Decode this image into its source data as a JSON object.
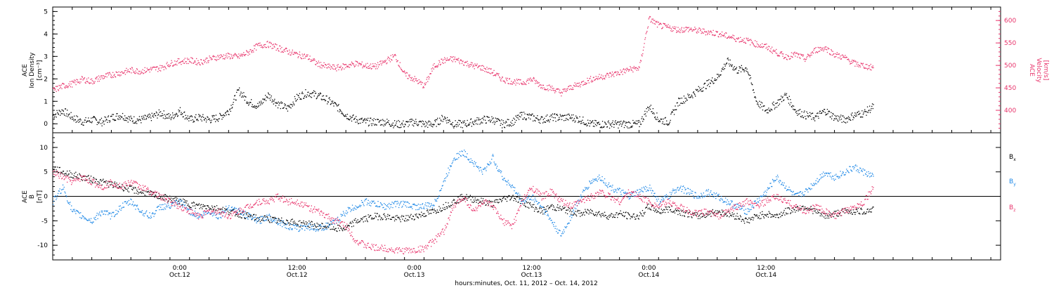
{
  "colors": {
    "black": "#000000",
    "velocity": "#e8336b",
    "bx": "#000000",
    "by": "#1a86e6",
    "bz": "#e8336b"
  },
  "chart_data": [
    {
      "type": "scatter",
      "ylabel_lines": [
        "ACE",
        "Ion Density",
        "[cm⁻³]"
      ],
      "ylim": [
        -0.4,
        5.2
      ],
      "yticks": [
        0,
        1,
        2,
        3,
        4,
        5
      ],
      "right_axis": {
        "label_lines": [
          "ACE",
          "Velocity",
          "[km/s]"
        ],
        "ylim": [
          350,
          630
        ],
        "yticks": [
          400,
          450,
          500,
          550,
          600
        ]
      },
      "series": [
        {
          "color_key": "black",
          "axis": "left",
          "x_hours": [
            0,
            1,
            2,
            3,
            4,
            5,
            6,
            7,
            8,
            9,
            10,
            11,
            12,
            13,
            14,
            15,
            16,
            17,
            18,
            19,
            20,
            21,
            22,
            23,
            24,
            25,
            26,
            27,
            28,
            29,
            30,
            31,
            32,
            33,
            34,
            35,
            36,
            37,
            38,
            39,
            40,
            41,
            42,
            43,
            44,
            45,
            46,
            47,
            48,
            49,
            50,
            51,
            52,
            53,
            54,
            55,
            56,
            57,
            58,
            59,
            60,
            61,
            62,
            63,
            64,
            65,
            66,
            67,
            68,
            69,
            70,
            71,
            72,
            73,
            74,
            75,
            76,
            77,
            78,
            79,
            80,
            81,
            82,
            83,
            84
          ],
          "values": [
            0.4,
            0.6,
            0.3,
            0.1,
            0.2,
            0.1,
            0.3,
            0.4,
            0.2,
            0.2,
            0.3,
            0.5,
            0.3,
            0.6,
            0.2,
            0.3,
            0.2,
            0.3,
            0.6,
            1.5,
            1.0,
            0.8,
            1.3,
            0.9,
            0.7,
            1.2,
            1.4,
            1.3,
            1.1,
            0.8,
            0.4,
            0.2,
            0.1,
            0.1,
            0.1,
            0.0,
            0.0,
            0.1,
            0.0,
            0.0,
            0.3,
            0.0,
            0.0,
            0.1,
            0.2,
            0.2,
            0.0,
            0.1,
            0.4,
            0.3,
            0.2,
            0.3,
            0.3,
            0.3,
            0.2,
            0.0,
            0.0,
            0.0,
            0.0,
            0.0,
            0.0,
            0.8,
            0.2,
            0.1,
            1.0,
            1.2,
            1.5,
            1.8,
            2.1,
            2.8,
            2.4,
            2.5,
            1.0,
            0.6,
            0.9,
            1.3,
            0.6,
            0.4,
            0.3,
            0.6,
            0.3,
            0.2,
            0.4,
            0.5,
            0.8
          ]
        },
        {
          "color_key": "velocity",
          "axis": "right",
          "x_hours": [
            0,
            1,
            2,
            3,
            4,
            5,
            6,
            7,
            8,
            9,
            10,
            11,
            12,
            13,
            14,
            15,
            16,
            17,
            18,
            19,
            20,
            21,
            22,
            23,
            24,
            25,
            26,
            27,
            28,
            29,
            30,
            31,
            32,
            33,
            34,
            35,
            36,
            37,
            38,
            39,
            40,
            41,
            42,
            43,
            44,
            45,
            46,
            47,
            48,
            49,
            50,
            51,
            52,
            53,
            54,
            55,
            56,
            57,
            58,
            59,
            60,
            61,
            62,
            63,
            64,
            65,
            66,
            67,
            68,
            69,
            70,
            71,
            72,
            73,
            74,
            75,
            76,
            77,
            78,
            79,
            80,
            81,
            82,
            83,
            84
          ],
          "values": [
            445,
            455,
            460,
            470,
            465,
            475,
            480,
            485,
            490,
            488,
            492,
            495,
            505,
            510,
            512,
            508,
            515,
            520,
            522,
            520,
            530,
            545,
            548,
            540,
            532,
            525,
            520,
            505,
            498,
            495,
            500,
            505,
            500,
            498,
            510,
            522,
            480,
            470,
            455,
            500,
            512,
            515,
            508,
            500,
            495,
            485,
            470,
            465,
            462,
            470,
            455,
            450,
            440,
            452,
            460,
            470,
            475,
            480,
            485,
            492,
            495,
            605,
            590,
            585,
            580,
            582,
            578,
            575,
            572,
            566,
            560,
            556,
            548,
            542,
            530,
            520,
            525,
            515,
            535,
            540,
            525,
            518,
            505,
            500,
            495
          ]
        }
      ]
    },
    {
      "type": "scatter",
      "ylabel_lines": [
        "ACE",
        "B",
        "[nT]"
      ],
      "ylim": [
        -13,
        13
      ],
      "yticks": [
        -10,
        -5,
        0,
        5,
        10
      ],
      "reference_line": 0,
      "legend": [
        "Bₓ",
        "Bᵧ",
        "B_z"
      ],
      "legend_placement": "right",
      "series": [
        {
          "name": "Bₓ",
          "color_key": "bx",
          "x_hours": [
            0,
            1,
            2,
            3,
            4,
            5,
            6,
            7,
            8,
            9,
            10,
            11,
            12,
            13,
            14,
            15,
            16,
            17,
            18,
            19,
            20,
            21,
            22,
            23,
            24,
            25,
            26,
            27,
            28,
            29,
            30,
            31,
            32,
            33,
            34,
            35,
            36,
            37,
            38,
            39,
            40,
            41,
            42,
            43,
            44,
            45,
            46,
            47,
            48,
            49,
            50,
            51,
            52,
            53,
            54,
            55,
            56,
            57,
            58,
            59,
            60,
            61,
            62,
            63,
            64,
            65,
            66,
            67,
            68,
            69,
            70,
            71,
            72,
            73,
            74,
            75,
            76,
            77,
            78,
            79,
            80,
            81,
            82,
            83,
            84
          ],
          "values": [
            6,
            5,
            4.5,
            4,
            3.5,
            3,
            2.5,
            2,
            1.5,
            1,
            0.5,
            0,
            -0.5,
            -1,
            -1.5,
            -2,
            -2,
            -2.5,
            -3,
            -3.5,
            -4,
            -4.5,
            -4.5,
            -5,
            -5,
            -5.5,
            -5.5,
            -6,
            -6,
            -6.5,
            -6.5,
            -5,
            -4.5,
            -4,
            -4,
            -4.5,
            -4.5,
            -4,
            -3.5,
            -3,
            -2,
            -1,
            0,
            -0.5,
            -1,
            -1.5,
            -0.5,
            0,
            -1,
            -2,
            -3,
            -2,
            -2.5,
            -3,
            -3.5,
            -3,
            -3.5,
            -4,
            -3.5,
            -4,
            -4,
            -2,
            -3,
            -2.5,
            -3,
            -3.5,
            -4,
            -3.5,
            -3,
            -3.5,
            -4,
            -5,
            -4,
            -3.5,
            -4,
            -3,
            -2.5,
            -2,
            -3,
            -4,
            -3.5,
            -3,
            -3,
            -3,
            -2.5
          ]
        },
        {
          "name": "Bᵧ",
          "color_key": "by",
          "x_hours": [
            0,
            1,
            2,
            3,
            4,
            5,
            6,
            7,
            8,
            9,
            10,
            11,
            12,
            13,
            14,
            15,
            16,
            17,
            18,
            19,
            20,
            21,
            22,
            23,
            24,
            25,
            26,
            27,
            28,
            29,
            30,
            31,
            32,
            33,
            34,
            35,
            36,
            37,
            38,
            39,
            40,
            41,
            42,
            43,
            44,
            45,
            46,
            47,
            48,
            49,
            50,
            51,
            52,
            53,
            54,
            55,
            56,
            57,
            58,
            59,
            60,
            61,
            62,
            63,
            64,
            65,
            66,
            67,
            68,
            69,
            70,
            71,
            72,
            73,
            74,
            75,
            76,
            77,
            78,
            79,
            80,
            81,
            82,
            83,
            84
          ],
          "values": [
            -1,
            2,
            -3,
            -4,
            -5,
            -3,
            -4,
            -2,
            -1,
            -3,
            -4,
            -2,
            -2,
            -1,
            -3,
            -4,
            -3,
            -4,
            -2,
            -3,
            -4,
            -5,
            -4,
            -5,
            -6,
            -6.5,
            -6,
            -6.5,
            -6,
            -5,
            -3,
            -2,
            -1,
            -1.5,
            -2,
            -1.5,
            -1.5,
            -2,
            -2,
            -1.5,
            3,
            8,
            9,
            7,
            5,
            8,
            4,
            2,
            -1,
            0,
            -2,
            -5,
            -8,
            -4,
            0,
            3,
            4,
            2,
            1,
            0,
            1,
            2,
            -1,
            0,
            2,
            1,
            0,
            1,
            0,
            -1,
            -2,
            -3,
            -1,
            1,
            4,
            2,
            0,
            1,
            3,
            5,
            4,
            5,
            6,
            5,
            4
          ]
        },
        {
          "name": "B_z",
          "color_key": "bz",
          "x_hours": [
            0,
            1,
            2,
            3,
            4,
            5,
            6,
            7,
            8,
            9,
            10,
            11,
            12,
            13,
            14,
            15,
            16,
            17,
            18,
            19,
            20,
            21,
            22,
            23,
            24,
            25,
            26,
            27,
            28,
            29,
            30,
            31,
            32,
            33,
            34,
            35,
            36,
            37,
            38,
            39,
            40,
            41,
            42,
            43,
            44,
            45,
            46,
            47,
            48,
            49,
            50,
            51,
            52,
            53,
            54,
            55,
            56,
            57,
            58,
            59,
            60,
            61,
            62,
            63,
            64,
            65,
            66,
            67,
            68,
            69,
            70,
            71,
            72,
            73,
            74,
            75,
            76,
            77,
            78,
            79,
            80,
            81,
            82,
            83,
            84
          ],
          "values": [
            5,
            4,
            3,
            4,
            3,
            2,
            3,
            2,
            3,
            2,
            1,
            0,
            -1,
            -2,
            -3,
            -4,
            -3,
            -3,
            -4,
            -3,
            -2,
            -1,
            -1,
            0,
            -1,
            -1,
            -2,
            -3,
            -4,
            -5,
            -6,
            -9,
            -10,
            -10.5,
            -10.5,
            -11,
            -11,
            -11,
            -10.5,
            -9,
            -7,
            -2,
            0,
            -3,
            -1,
            -2,
            -5,
            -6,
            -1,
            2,
            0,
            1,
            -1,
            -2,
            -1,
            0,
            1,
            0,
            -1,
            1,
            0,
            -1,
            -2,
            -1,
            -2,
            -3,
            -3.5,
            -3,
            -4,
            -3,
            -2,
            -1,
            -2,
            -1,
            0,
            -1,
            -2,
            -3,
            -2,
            -3,
            -4,
            -3,
            -2,
            -1,
            2
          ]
        }
      ]
    }
  ],
  "x_axis": {
    "tick_labels": [
      {
        "time": "0:00",
        "date": "Oct.12"
      },
      {
        "time": "12:00",
        "date": "Oct.12"
      },
      {
        "time": "0:00",
        "date": "Oct.13"
      },
      {
        "time": "12:00",
        "date": "Oct.13"
      },
      {
        "time": "0:00",
        "date": "Oct.14"
      },
      {
        "time": "12:00",
        "date": "Oct.14"
      }
    ],
    "tick_hours": [
      13,
      25,
      37,
      49,
      61,
      73
    ],
    "range_hours": [
      0,
      97
    ],
    "title": "hours:minutes, Oct. 11, 2012 – Oct. 14, 2012"
  },
  "legend_labels": {
    "bx_main": "B",
    "bx_sub": "x",
    "by_main": "B",
    "by_sub": "y",
    "bz_main": "B",
    "bz_sub": "z"
  }
}
